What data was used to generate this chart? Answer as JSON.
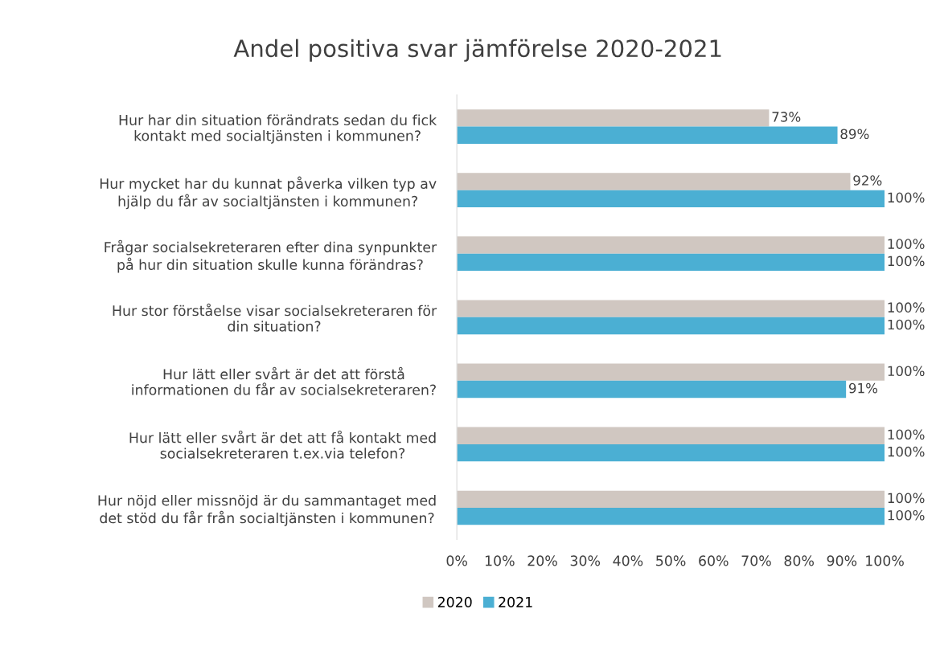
{
  "chart_data": {
    "type": "bar",
    "orientation": "horizontal",
    "title": "Andel positiva svar jämförelse 2020-2021",
    "categories": [
      "Hur har din situation förändrats sedan du fick\nkontakt med socialtjänsten i kommunen?",
      "Hur mycket har du kunnat påverka vilken typ av\nhjälp du får av socialtjänsten i kommunen?",
      "Frågar socialsekreteraren efter dina synpunkter\npå hur din situation skulle kunna förändras?",
      "Hur stor förståelse visar socialsekreteraren för\ndin situation?",
      "Hur lätt eller svårt är det att förstå\ninformationen du får av socialsekreteraren?",
      "Hur lätt eller svårt är det att få kontakt med\nsocialsekreteraren t.ex.via telefon?",
      "Hur nöjd eller missnöjd är du sammantaget med\ndet stöd du får från socialtjänsten i kommunen?"
    ],
    "series": [
      {
        "name": "2020",
        "color": "#d0c7c1",
        "values": [
          73,
          92,
          100,
          100,
          100,
          100,
          100
        ],
        "value_labels": [
          "73%",
          "92%",
          "100%",
          "100%",
          "100%",
          "100%",
          "100%"
        ]
      },
      {
        "name": "2021",
        "color": "#4bafd3",
        "values": [
          89,
          100,
          100,
          100,
          91,
          100,
          100
        ],
        "value_labels": [
          "89%",
          "100%",
          "100%",
          "100%",
          "91%",
          "100%",
          "100%"
        ]
      }
    ],
    "xlim": [
      0,
      100
    ],
    "xticks": [
      {
        "value": 0,
        "label": "0%"
      },
      {
        "value": 10,
        "label": "10%"
      },
      {
        "value": 20,
        "label": "20%"
      },
      {
        "value": 30,
        "label": "30%"
      },
      {
        "value": 40,
        "label": "40%"
      },
      {
        "value": 50,
        "label": "50%"
      },
      {
        "value": 60,
        "label": "60%"
      },
      {
        "value": 70,
        "label": "70%"
      },
      {
        "value": 80,
        "label": "80%"
      },
      {
        "value": 90,
        "label": "90%"
      },
      {
        "value": 100,
        "label": "100%"
      }
    ],
    "grid": false,
    "legend": "bottom"
  }
}
